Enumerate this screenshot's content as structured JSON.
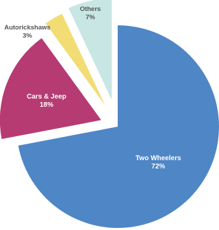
{
  "chart_data": {
    "type": "pie",
    "exploded": true,
    "slices": [
      {
        "label": "Two Wheelers",
        "percent_label": "72%",
        "value": 72,
        "color": "#4f86c6",
        "label_color": "#ffffff",
        "label_position": "inside"
      },
      {
        "label": "Cars & Jeep",
        "percent_label": "18%",
        "value": 18,
        "color": "#b63b72",
        "label_color": "#ffffff",
        "label_position": "inside"
      },
      {
        "label": "Autorickshaws",
        "percent_label": "3%",
        "value": 3,
        "color": "#f2dc74",
        "label_color": "#555555",
        "label_position": "outside"
      },
      {
        "label": "Others",
        "percent_label": "7%",
        "value": 7,
        "color": "#c8e6e3",
        "label_color": "#555555",
        "label_position": "outside"
      }
    ]
  }
}
